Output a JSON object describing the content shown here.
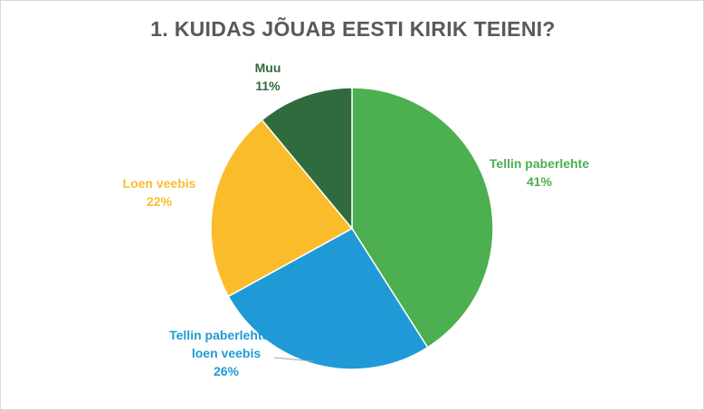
{
  "chart_data": {
    "type": "pie",
    "title": "1. KUIDAS JÕUAB EESTI KIRIK TEIENI?",
    "slices": [
      {
        "label": "Tellin paberlehte",
        "label_lines": [
          "Tellin paberlehte"
        ],
        "value": 41,
        "value_label": "41%",
        "color": "#4caf50"
      },
      {
        "label": "Tellin paberlehte ja loen veebis",
        "label_lines": [
          "Tellin paberlehte ja",
          "loen veebis"
        ],
        "value": 26,
        "value_label": "26%",
        "color": "#1f9ad6"
      },
      {
        "label": "Loen veebis",
        "label_lines": [
          "Loen veebis"
        ],
        "value": 22,
        "value_label": "22%",
        "color": "#fbbc2c"
      },
      {
        "label": "Muu",
        "label_lines": [
          "Muu"
        ],
        "value": 11,
        "value_label": "11%",
        "color": "#2f6b3c"
      }
    ],
    "label_text_colors": [
      "#4caf50",
      "#1f9ad6",
      "#fbbc2c",
      "#2f6b3c"
    ],
    "legend": "none"
  }
}
